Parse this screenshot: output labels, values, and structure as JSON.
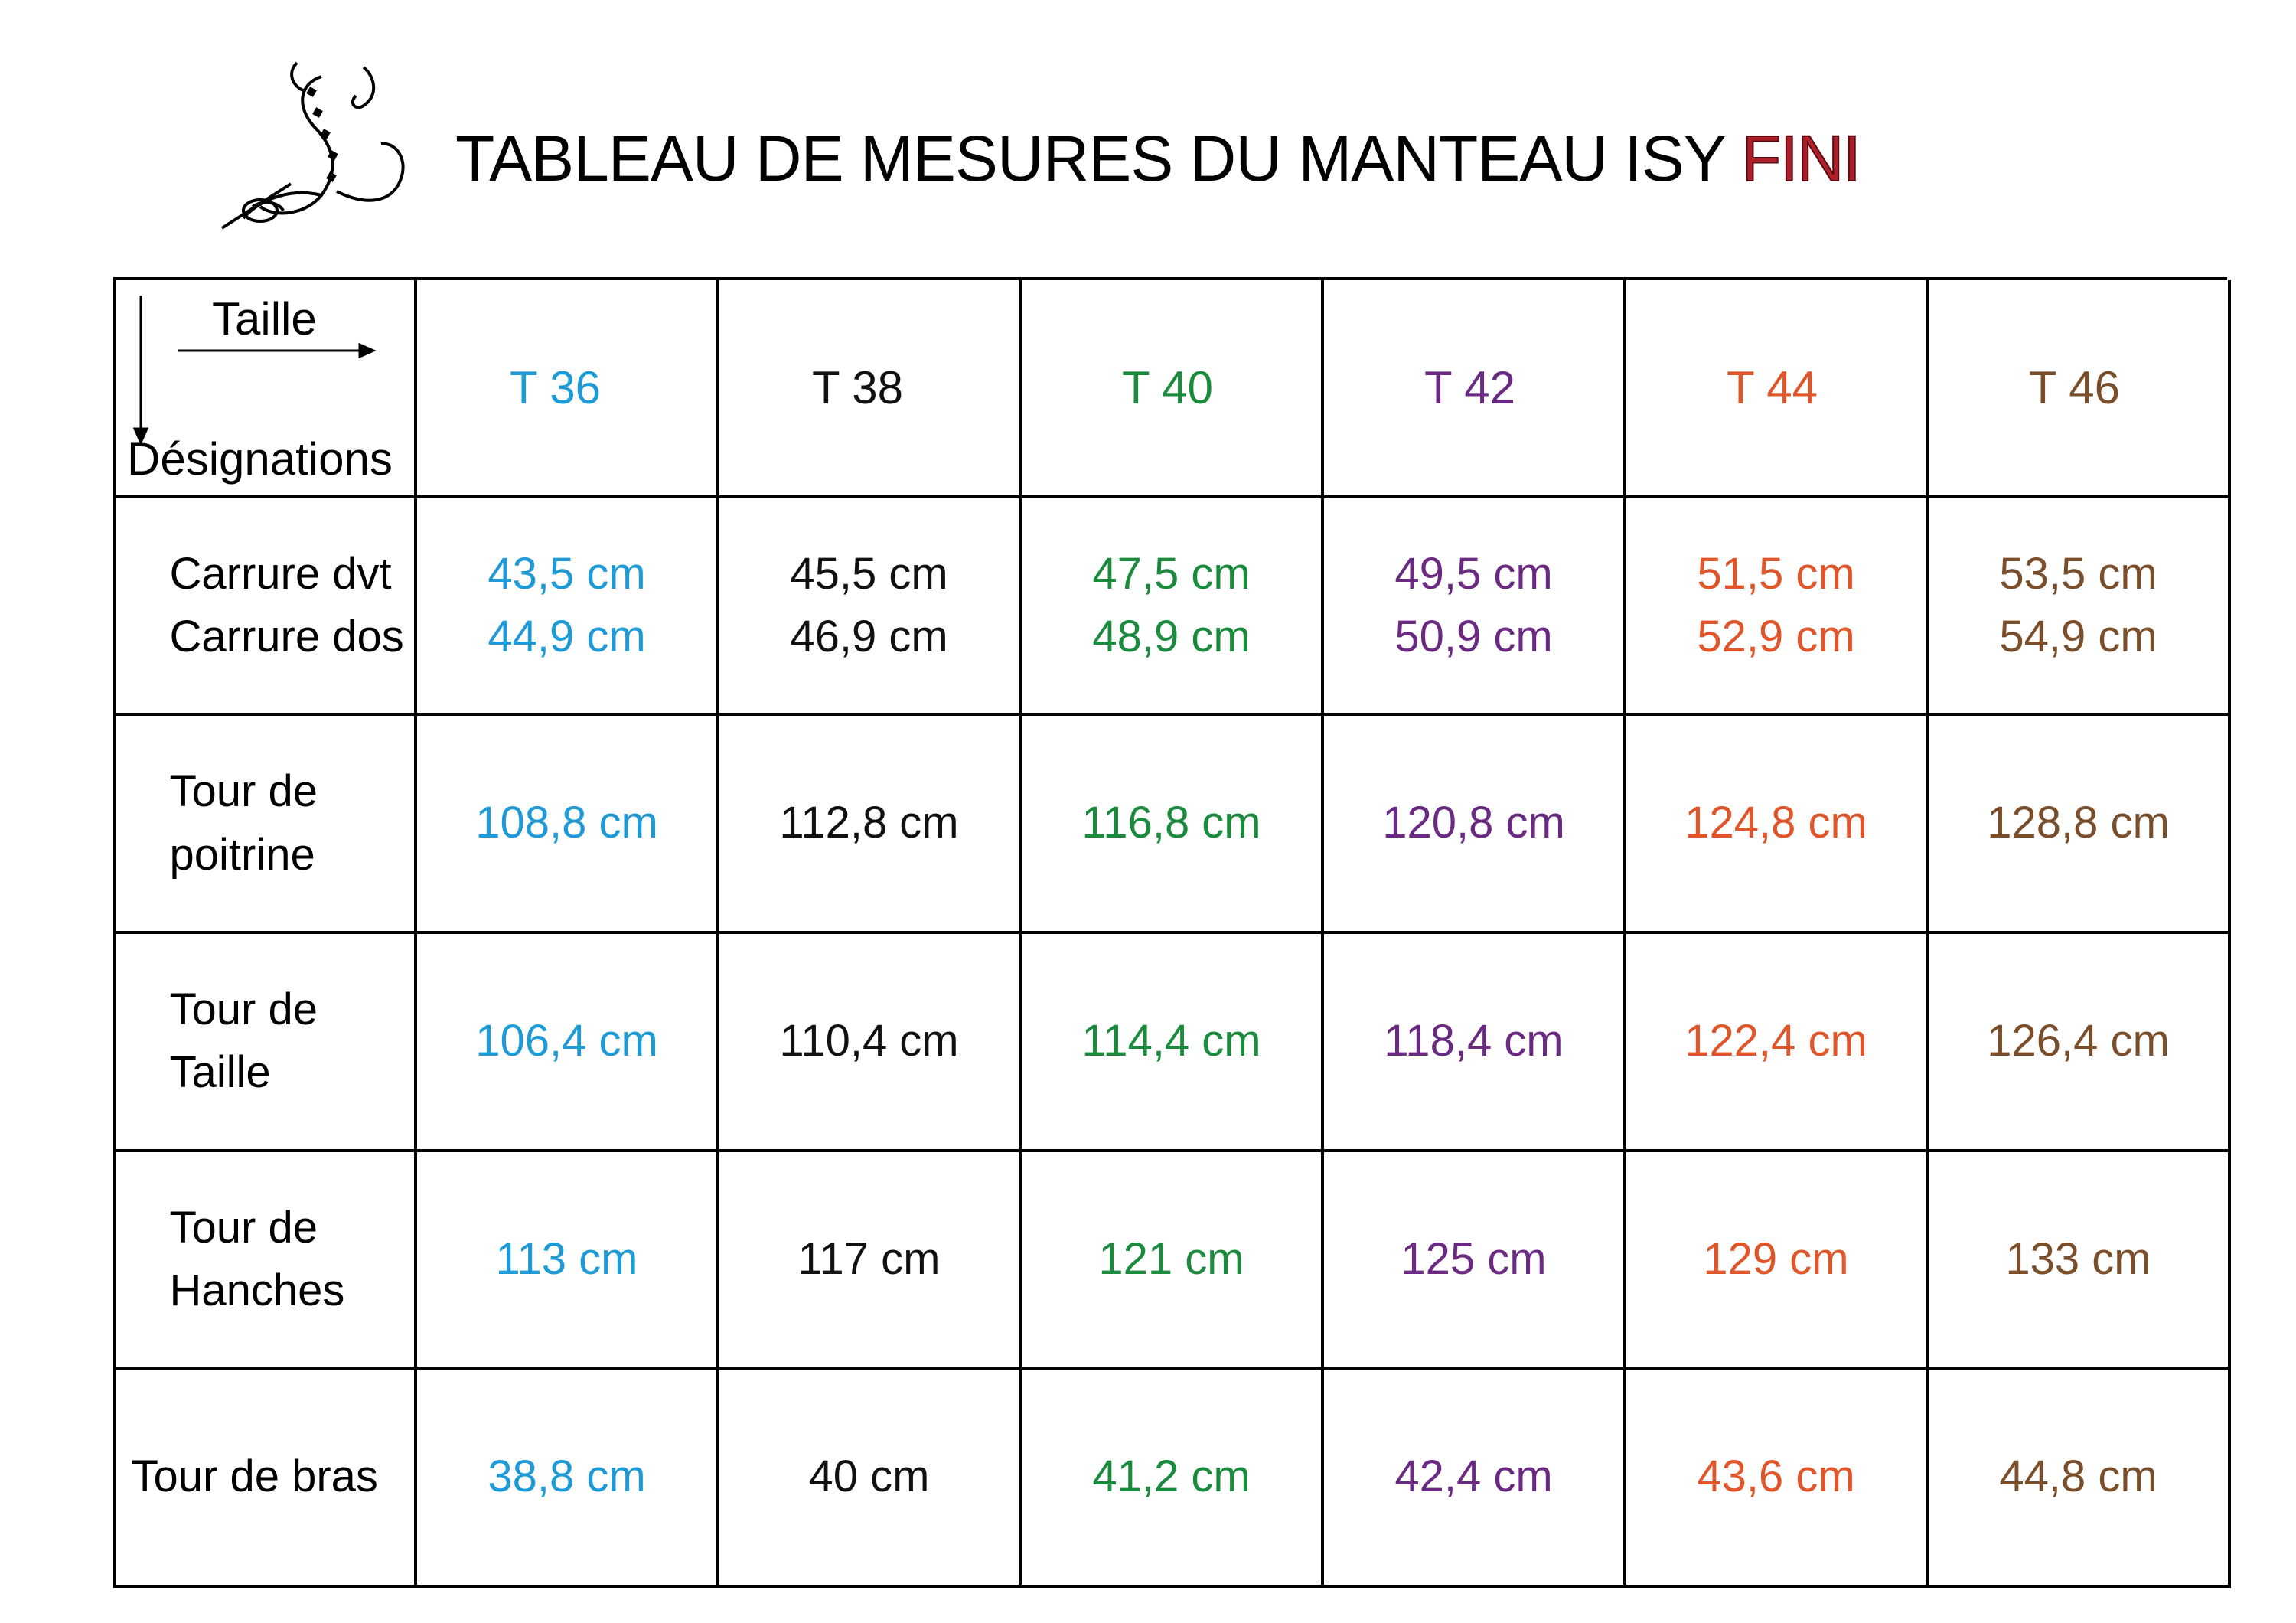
{
  "title": {
    "main": "TABLEAU DE MESURES DU MANTEAU ISY",
    "highlight": "FINI"
  },
  "logo": {
    "icon": "needle-thread-swirl-icon"
  },
  "table": {
    "corner": {
      "top_label": "Taille",
      "bottom_label": "Désignations"
    },
    "sizes": [
      {
        "label": "T 36",
        "color": "#1e9ad6"
      },
      {
        "label": "T 38",
        "color": "#111111"
      },
      {
        "label": "T 40",
        "color": "#1a8a3c"
      },
      {
        "label": "T 42",
        "color": "#6a2a82"
      },
      {
        "label": "T 44",
        "color": "#e0552a"
      },
      {
        "label": "T 46",
        "color": "#7a4e2a"
      }
    ],
    "rows": [
      {
        "label": [
          "Carrure dvt",
          "Carrure dos"
        ],
        "values": [
          [
            "43,5 cm",
            "44,9 cm"
          ],
          [
            "45,5 cm",
            "46,9 cm"
          ],
          [
            "47,5 cm",
            "48,9 cm"
          ],
          [
            "49,5 cm",
            "50,9 cm"
          ],
          [
            "51,5 cm",
            "52,9 cm"
          ],
          [
            "53,5 cm",
            "54,9 cm"
          ]
        ]
      },
      {
        "label": [
          "Tour de",
          "poitrine"
        ],
        "values": [
          [
            "108,8 cm"
          ],
          [
            "112,8 cm"
          ],
          [
            "116,8 cm"
          ],
          [
            "120,8 cm"
          ],
          [
            "124,8 cm"
          ],
          [
            "128,8 cm"
          ]
        ]
      },
      {
        "label": [
          "Tour de",
          "Taille"
        ],
        "values": [
          [
            "106,4 cm"
          ],
          [
            "110,4 cm"
          ],
          [
            "114,4 cm"
          ],
          [
            "118,4 cm"
          ],
          [
            "122,4 cm"
          ],
          [
            "126,4 cm"
          ]
        ]
      },
      {
        "label": [
          "Tour de",
          "Hanches"
        ],
        "values": [
          [
            "113 cm"
          ],
          [
            "117 cm"
          ],
          [
            "121 cm"
          ],
          [
            "125 cm"
          ],
          [
            "129 cm"
          ],
          [
            "133 cm"
          ]
        ]
      },
      {
        "label": [
          "Tour de bras"
        ],
        "values": [
          [
            "38,8 cm"
          ],
          [
            "40 cm"
          ],
          [
            "41,2 cm"
          ],
          [
            "42,4 cm"
          ],
          [
            "43,6 cm"
          ],
          [
            "44,8 cm"
          ]
        ]
      }
    ]
  }
}
